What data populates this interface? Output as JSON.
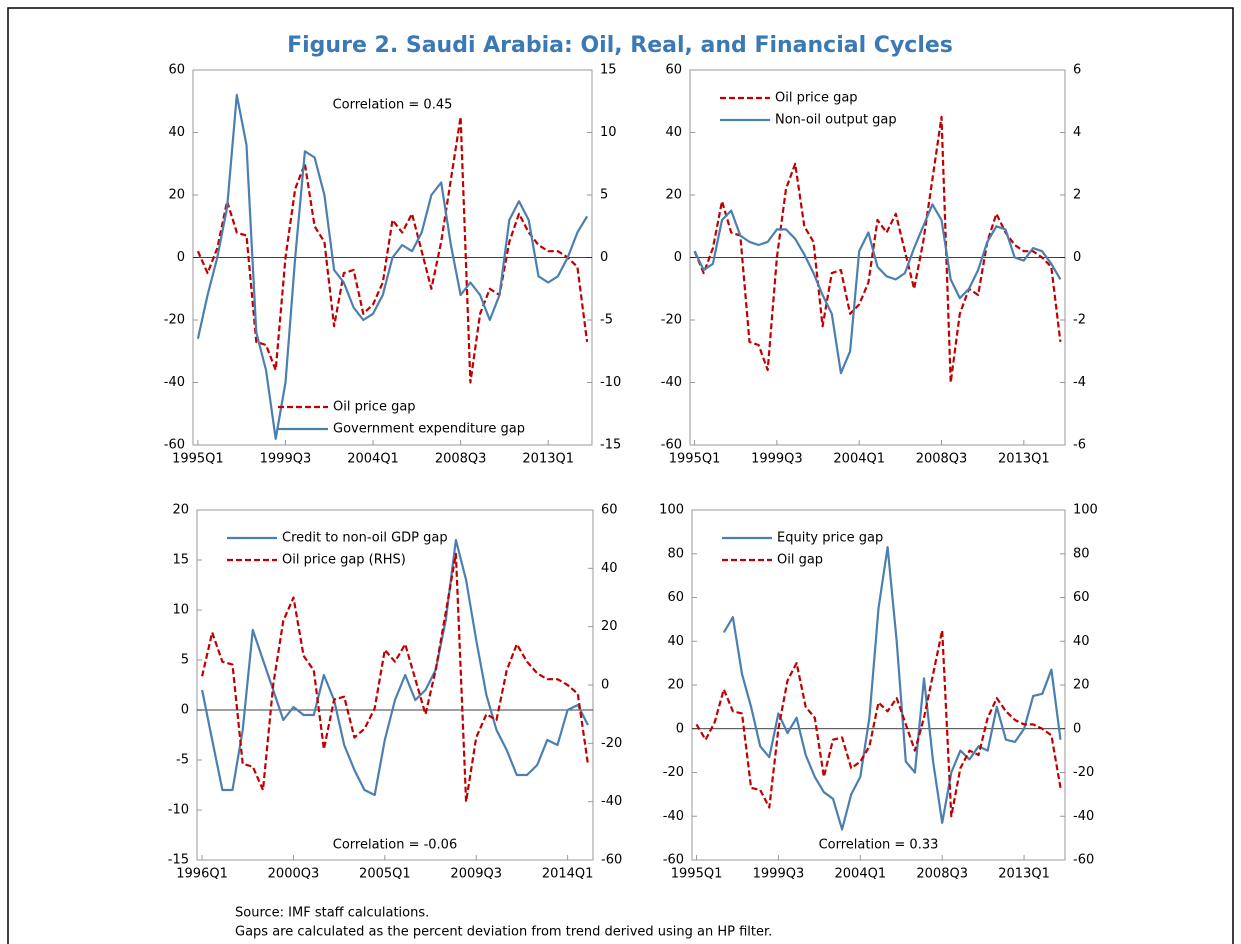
{
  "title": "Figure 2. Saudi Arabia: Oil, Real, and Financial Cycles",
  "notes": [
    "Source: IMF staff calculations.",
    "Gaps are calculated as the percent deviation from trend derived using an HP filter."
  ],
  "chart_data": [
    {
      "type": "line",
      "categories": [
        "1995Q1",
        null,
        null,
        null,
        null,
        null,
        null,
        null,
        null,
        "1999Q3",
        null,
        null,
        null,
        null,
        null,
        null,
        null,
        null,
        "2004Q1",
        null,
        null,
        null,
        null,
        null,
        null,
        null,
        null,
        "2008Q3",
        null,
        null,
        null,
        null,
        null,
        null,
        null,
        null,
        "2013Q1",
        null,
        null,
        null,
        null
      ],
      "series": [
        {
          "name": "Oil price gap",
          "color": "#c00000",
          "line_style": "dashed",
          "values": [
            2,
            -5,
            3,
            18,
            8,
            7,
            -27,
            -28,
            -36,
            0,
            22,
            30,
            10,
            5,
            -22,
            -5,
            -4,
            -18,
            -15,
            -8,
            12,
            8,
            14,
            2,
            -10,
            5,
            25,
            45,
            -40,
            -18,
            -10,
            -12,
            5,
            14,
            8,
            4,
            2,
            2,
            0,
            -3,
            -27
          ]
        },
        {
          "name": "Government expenditure gap",
          "color": "#4a7fb0",
          "line_style": "solid",
          "axis": "y2",
          "values": [
            -6.5,
            -3,
            0,
            4,
            13,
            9,
            -6,
            -9,
            -14.5,
            -10,
            0,
            8.5,
            8,
            5,
            -1,
            -2,
            -4,
            -5,
            -4.5,
            -3,
            0,
            1,
            0.5,
            2,
            5,
            6,
            1,
            -3,
            -2,
            -3,
            -5,
            -3,
            3,
            4.5,
            3,
            -1.5,
            -2,
            -1.5,
            0,
            2,
            3.3
          ]
        }
      ],
      "ylim": [
        -60,
        60
      ],
      "yticks": [
        -60,
        -40,
        -20,
        0,
        20,
        40,
        60
      ],
      "y2lim": [
        -15,
        15
      ],
      "y2ticks": [
        -15,
        -10,
        -5,
        0,
        5,
        10,
        15
      ],
      "legend": "lower right",
      "annotation": "Correlation = 0.45"
    },
    {
      "type": "line",
      "categories": [
        "1995Q1",
        null,
        null,
        null,
        null,
        null,
        null,
        null,
        null,
        "1999Q3",
        null,
        null,
        null,
        null,
        null,
        null,
        null,
        null,
        "2004Q1",
        null,
        null,
        null,
        null,
        null,
        null,
        null,
        null,
        "2008Q3",
        null,
        null,
        null,
        null,
        null,
        null,
        null,
        null,
        "2013Q1",
        null,
        null,
        null,
        null
      ],
      "series": [
        {
          "name": "Oil price gap",
          "color": "#c00000",
          "line_style": "dashed",
          "values": [
            2,
            -5,
            3,
            18,
            8,
            7,
            -27,
            -28,
            -36,
            0,
            22,
            30,
            10,
            5,
            -22,
            -5,
            -4,
            -18,
            -15,
            -8,
            12,
            8,
            14,
            2,
            -10,
            5,
            25,
            45,
            -40,
            -18,
            -10,
            -12,
            5,
            14,
            8,
            4,
            2,
            2,
            0,
            -3,
            -27
          ]
        },
        {
          "name": "Non-oil output gap",
          "color": "#4a7fb0",
          "line_style": "solid",
          "axis": "y2",
          "values": [
            0.2,
            -0.4,
            -0.2,
            1.2,
            1.5,
            0.7,
            0.5,
            0.4,
            0.5,
            0.9,
            0.9,
            0.6,
            0.1,
            -0.5,
            -1.2,
            -1.8,
            -3.7,
            -3,
            0.2,
            0.8,
            -0.3,
            -0.6,
            -0.7,
            -0.5,
            0.3,
            1,
            1.7,
            1.2,
            -0.7,
            -1.3,
            -1,
            -0.4,
            0.5,
            1,
            0.9,
            0,
            -0.1,
            0.3,
            0.2,
            -0.2,
            -0.7
          ]
        }
      ],
      "ylim": [
        -60,
        60
      ],
      "yticks": [
        -60,
        -40,
        -20,
        0,
        20,
        40,
        60
      ],
      "y2lim": [
        -6,
        6
      ],
      "y2ticks": [
        -6,
        -4,
        -2,
        0,
        2,
        4,
        6
      ],
      "legend": "upper left"
    },
    {
      "type": "line",
      "categories": [
        "1996Q1",
        null,
        null,
        null,
        null,
        null,
        null,
        null,
        null,
        "2000Q3",
        null,
        null,
        null,
        null,
        null,
        null,
        null,
        null,
        "2005Q1",
        null,
        null,
        null,
        null,
        null,
        null,
        null,
        null,
        "2009Q3",
        null,
        null,
        null,
        null,
        null,
        null,
        null,
        null,
        "2014Q1",
        null,
        null
      ],
      "series": [
        {
          "name": "Credit to non-oil GDP gap",
          "color": "#4a7fb0",
          "line_style": "solid",
          "values": [
            2,
            -3,
            -8,
            -8,
            -2,
            8,
            5,
            2,
            -1,
            0.3,
            -0.5,
            -0.5,
            3.5,
            1,
            -3.5,
            -6,
            -8,
            -8.5,
            -3,
            1,
            3.5,
            1,
            2,
            4,
            9,
            17,
            13,
            7,
            1.5,
            -2,
            -4,
            -6.5,
            -6.5,
            -5.5,
            -3,
            -3.5,
            0,
            0.5,
            -1.5
          ]
        },
        {
          "name": "Oil price gap (RHS)",
          "color": "#c00000",
          "line_style": "dashed",
          "axis": "y2",
          "values": [
            3,
            18,
            8,
            7,
            -27,
            -28,
            -36,
            0,
            22,
            30,
            10,
            5,
            -22,
            -5,
            -4,
            -18,
            -15,
            -8,
            12,
            8,
            14,
            2,
            -10,
            5,
            25,
            45,
            -40,
            -18,
            -10,
            -12,
            5,
            14,
            8,
            4,
            2,
            2,
            0,
            -3,
            -27
          ]
        }
      ],
      "ylim": [
        -15,
        20
      ],
      "yticks": [
        -15,
        -10,
        -5,
        0,
        5,
        10,
        15,
        20
      ],
      "y2lim": [
        -60,
        60
      ],
      "y2ticks": [
        -60,
        -40,
        -20,
        0,
        20,
        40,
        60
      ],
      "legend": "upper left",
      "annotation": "Correlation = -0.06"
    },
    {
      "type": "line",
      "categories": [
        "1995Q1",
        null,
        null,
        null,
        null,
        null,
        null,
        null,
        null,
        "1999Q3",
        null,
        null,
        null,
        null,
        null,
        null,
        null,
        null,
        "2004Q1",
        null,
        null,
        null,
        null,
        null,
        null,
        null,
        null,
        "2008Q3",
        null,
        null,
        null,
        null,
        null,
        null,
        null,
        null,
        "2013Q1",
        null,
        null,
        null,
        null
      ],
      "series": [
        {
          "name": "Equity price gap",
          "color": "#4a7fb0",
          "line_style": "solid",
          "values": [
            null,
            null,
            null,
            44,
            51,
            25,
            10,
            -8,
            -13,
            7,
            -2,
            5,
            -12,
            -22,
            -29,
            -32,
            -46,
            -30,
            -22,
            5,
            55,
            83,
            40,
            -15,
            -20,
            23,
            -15,
            -43,
            -20,
            -10,
            -14,
            -8,
            -10,
            10,
            -5,
            -6,
            0,
            15,
            16,
            27,
            -5
          ]
        },
        {
          "name": "Oil gap",
          "color": "#c00000",
          "line_style": "dashed",
          "axis": "y2",
          "values": [
            2,
            -5,
            3,
            18,
            8,
            7,
            -27,
            -28,
            -36,
            0,
            22,
            30,
            10,
            5,
            -22,
            -5,
            -4,
            -18,
            -15,
            -8,
            12,
            8,
            14,
            2,
            -10,
            5,
            25,
            45,
            -40,
            -18,
            -10,
            -12,
            5,
            14,
            8,
            4,
            2,
            2,
            0,
            -3,
            -27
          ]
        }
      ],
      "ylim": [
        -60,
        100
      ],
      "yticks": [
        -60,
        -40,
        -20,
        0,
        20,
        40,
        60,
        80,
        100
      ],
      "y2lim": [
        -60,
        100
      ],
      "y2ticks": [
        -60,
        -40,
        -20,
        0,
        20,
        40,
        60,
        80,
        100
      ],
      "legend": "upper left",
      "annotation": "Correlation = 0.33"
    }
  ]
}
